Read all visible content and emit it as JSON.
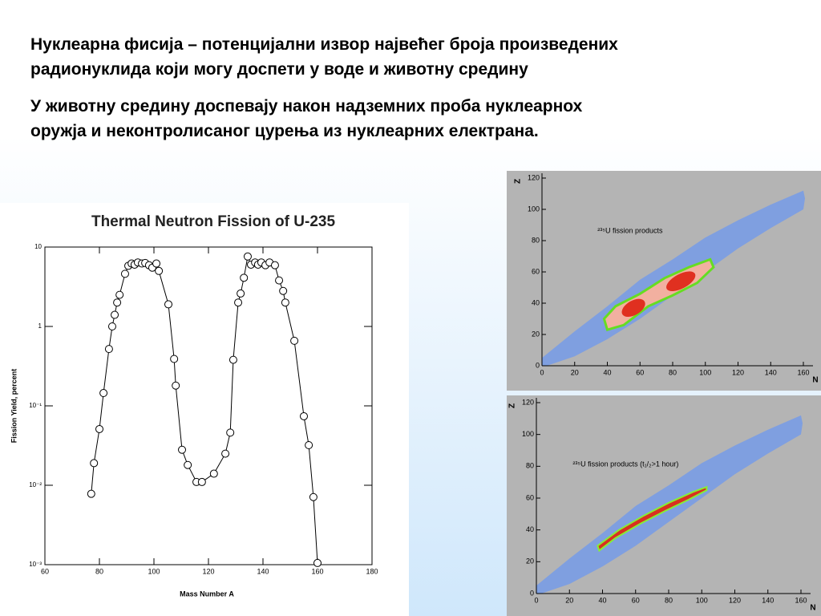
{
  "paragraphs": [
    [
      "Нуклеарна фисија – потенцијални извор највећег броја произведених",
      "радионуклида који могу доспети у воде и животну средину"
    ],
    [
      "У животну средину доспевају након надземних проба нуклеарнох",
      "оружја и неконтролисаног цурења из нуклеарних електрана."
    ]
  ],
  "chart_data": [
    {
      "type": "scatter",
      "title": "Thermal Neutron Fission of U-235",
      "x_label": "Mass Number A",
      "y_label": "Fission Yield, percent",
      "log_y": true,
      "color": "#000000",
      "x": [
        77,
        78,
        80,
        81.5,
        83.5,
        84.7,
        85.6,
        86.5,
        87.4,
        89.4,
        90.6,
        91.8,
        92.9,
        94.1,
        95.6,
        96.8,
        98.2,
        99.4,
        100.9,
        101.8,
        105.3,
        107.4,
        108,
        110.3,
        112.4,
        115.6,
        117.6,
        122,
        126.2,
        128,
        129.1,
        130.9,
        131.8,
        133,
        134.4,
        135.6,
        137.1,
        138.2,
        139.4,
        140.9,
        142.4,
        144.4,
        145.9,
        147.4,
        148.2,
        151.5,
        155,
        156.8,
        158.5,
        160
      ],
      "values": [
        0.0078,
        0.019,
        0.051,
        0.145,
        0.52,
        1.0,
        1.4,
        2.0,
        2.5,
        4.6,
        5.8,
        6.2,
        6.0,
        6.4,
        6.2,
        6.3,
        5.9,
        5.5,
        6.2,
        5.0,
        1.9,
        0.39,
        0.18,
        0.028,
        0.018,
        0.011,
        0.011,
        0.014,
        0.025,
        0.046,
        0.38,
        2.0,
        2.6,
        4.1,
        7.6,
        6.0,
        6.4,
        6.0,
        6.4,
        5.9,
        6.4,
        5.9,
        3.8,
        2.8,
        2.0,
        0.66,
        0.074,
        0.032,
        0.0071,
        0.00105
      ],
      "xlim": [
        60,
        180
      ],
      "xticks": [
        60,
        80,
        100,
        120,
        140,
        160,
        180
      ],
      "ylim": [
        0.001,
        10
      ],
      "yticks": [
        {
          "value": 0.001,
          "label": "10⁻³"
        },
        {
          "value": 0.01,
          "label": "10⁻²"
        },
        {
          "value": 0.1,
          "label": "10⁻¹"
        },
        1,
        10
      ]
    },
    {
      "type": "heatmap",
      "annotation": "²³⁵U fission products",
      "x_label": "N",
      "y_label": "Z",
      "xlim": [
        0,
        160
      ],
      "xticks": [
        0,
        20,
        40,
        60,
        80,
        100,
        120,
        140,
        160
      ],
      "ylim": [
        0,
        120
      ],
      "yticks": [
        0,
        20,
        40,
        60,
        80,
        100,
        120
      ]
    },
    {
      "type": "heatmap",
      "annotation": "²³⁵U fission products (t₁/₂>1 hour)",
      "x_label": "N",
      "y_label": "Z",
      "xlim": [
        0,
        160
      ],
      "xticks": [
        0,
        20,
        40,
        60,
        80,
        100,
        120,
        140,
        160
      ],
      "ylim": [
        0,
        120
      ],
      "yticks": [
        0,
        20,
        40,
        60,
        80,
        100,
        120
      ]
    }
  ]
}
